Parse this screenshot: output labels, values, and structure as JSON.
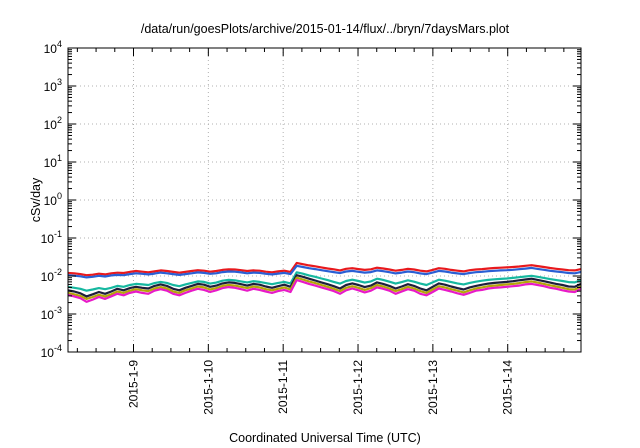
{
  "chart_data": {
    "type": "line",
    "title": "/data/run/goesPlots/archive/2015-01-14/flux/../bryn/7daysMars.plot",
    "xlabel": "Coordinated Universal Time (UTC)",
    "ylabel": "cSv/day",
    "yscale": "log",
    "ylim": [
      0.0001,
      10000
    ],
    "y_ticks": [
      {
        "value": 0.0001,
        "base": "10",
        "exp": "-4"
      },
      {
        "value": 0.001,
        "base": "10",
        "exp": "-3"
      },
      {
        "value": 0.01,
        "base": "10",
        "exp": "-2"
      },
      {
        "value": 0.1,
        "base": "10",
        "exp": "-1"
      },
      {
        "value": 1,
        "base": "10",
        "exp": "0"
      },
      {
        "value": 10,
        "base": "10",
        "exp": "1"
      },
      {
        "value": 100,
        "base": "10",
        "exp": "2"
      },
      {
        "value": 1000,
        "base": "10",
        "exp": "3"
      },
      {
        "value": 10000,
        "base": "10",
        "exp": "4"
      }
    ],
    "x_start": "2015-01-08T03:00",
    "x_end": "2015-01-14T23:30",
    "x_ticks": [
      "2015-1-9",
      "2015-1-10",
      "2015-1-11",
      "2015-1-12",
      "2015-1-13",
      "2015-1-14"
    ],
    "grid": true,
    "series": [
      {
        "color": "#e8191d",
        "values": [
          0.012,
          0.0118,
          0.0112,
          0.0105,
          0.0108,
          0.0115,
          0.011,
          0.0118,
          0.0122,
          0.012,
          0.0128,
          0.0135,
          0.013,
          0.0125,
          0.0132,
          0.014,
          0.0135,
          0.0128,
          0.0122,
          0.0128,
          0.0135,
          0.0142,
          0.0138,
          0.013,
          0.0135,
          0.0145,
          0.015,
          0.0148,
          0.0142,
          0.0135,
          0.014,
          0.0138,
          0.013,
          0.0125,
          0.0132,
          0.0138,
          0.0128,
          0.022,
          0.0205,
          0.019,
          0.018,
          0.0168,
          0.0158,
          0.015,
          0.014,
          0.0155,
          0.016,
          0.0152,
          0.0145,
          0.015,
          0.0165,
          0.0158,
          0.0148,
          0.0138,
          0.0145,
          0.0155,
          0.0148,
          0.0138,
          0.0132,
          0.0145,
          0.016,
          0.0155,
          0.0145,
          0.0138,
          0.0132,
          0.0142,
          0.0148,
          0.0152,
          0.0158,
          0.0162,
          0.0165,
          0.0168,
          0.0172,
          0.0178,
          0.0185,
          0.0192,
          0.0182,
          0.0172,
          0.0162,
          0.0155,
          0.0148,
          0.0142,
          0.014,
          0.0152
        ]
      },
      {
        "color": "#2a5fd4",
        "values": [
          0.0105,
          0.0102,
          0.0098,
          0.0092,
          0.0095,
          0.0101,
          0.0097,
          0.0104,
          0.0107,
          0.0105,
          0.0112,
          0.0118,
          0.0114,
          0.011,
          0.0116,
          0.0123,
          0.0118,
          0.0112,
          0.0107,
          0.0112,
          0.0118,
          0.0124,
          0.0121,
          0.0114,
          0.0118,
          0.0127,
          0.0131,
          0.013,
          0.0124,
          0.0118,
          0.0123,
          0.0121,
          0.0114,
          0.011,
          0.0116,
          0.0121,
          0.0112,
          0.0185,
          0.0172,
          0.016,
          0.0152,
          0.0142,
          0.0134,
          0.0127,
          0.0119,
          0.0131,
          0.0136,
          0.0129,
          0.0123,
          0.0127,
          0.014,
          0.0134,
          0.0126,
          0.0117,
          0.0123,
          0.0131,
          0.0126,
          0.0117,
          0.0112,
          0.0123,
          0.0136,
          0.0131,
          0.0123,
          0.0117,
          0.0112,
          0.012,
          0.0126,
          0.0129,
          0.0134,
          0.0137,
          0.014,
          0.0142,
          0.0146,
          0.0151,
          0.0157,
          0.0163,
          0.0154,
          0.0146,
          0.0137,
          0.0131,
          0.0126,
          0.012,
          0.0118,
          0.0128
        ]
      },
      {
        "color": "#16b8a0",
        "values": [
          0.0052,
          0.0049,
          0.0046,
          0.0041,
          0.0044,
          0.0048,
          0.0045,
          0.0049,
          0.0055,
          0.0052,
          0.0058,
          0.0062,
          0.006,
          0.0058,
          0.0065,
          0.007,
          0.0066,
          0.0058,
          0.0054,
          0.006,
          0.0066,
          0.0072,
          0.007,
          0.0063,
          0.0067,
          0.0075,
          0.0079,
          0.0077,
          0.0072,
          0.0068,
          0.0073,
          0.007,
          0.0065,
          0.0061,
          0.0066,
          0.007,
          0.0064,
          0.0125,
          0.0115,
          0.0104,
          0.0095,
          0.0086,
          0.0078,
          0.007,
          0.0063,
          0.0074,
          0.008,
          0.0074,
          0.0067,
          0.0072,
          0.0085,
          0.0079,
          0.0071,
          0.0063,
          0.0069,
          0.0077,
          0.0071,
          0.0063,
          0.0058,
          0.0068,
          0.008,
          0.0075,
          0.0069,
          0.0064,
          0.006,
          0.0066,
          0.0071,
          0.0075,
          0.0079,
          0.0082,
          0.0084,
          0.0086,
          0.0089,
          0.0093,
          0.0097,
          0.0101,
          0.0095,
          0.0089,
          0.0083,
          0.0078,
          0.0074,
          0.0069,
          0.0068,
          0.0078
        ]
      },
      {
        "color": "#1e1e3c",
        "values": [
          0.0042,
          0.0039,
          0.0035,
          0.0029,
          0.0033,
          0.0038,
          0.0034,
          0.0039,
          0.0046,
          0.0042,
          0.0048,
          0.0052,
          0.0049,
          0.0047,
          0.0055,
          0.006,
          0.0055,
          0.0046,
          0.0042,
          0.0049,
          0.0055,
          0.0062,
          0.0059,
          0.0052,
          0.0056,
          0.0064,
          0.0068,
          0.0066,
          0.0061,
          0.0056,
          0.0062,
          0.0059,
          0.0053,
          0.0049,
          0.0054,
          0.0059,
          0.0052,
          0.0105,
          0.0095,
          0.0085,
          0.0076,
          0.0068,
          0.0061,
          0.0054,
          0.0047,
          0.0058,
          0.0064,
          0.0058,
          0.0051,
          0.0056,
          0.0068,
          0.0062,
          0.0055,
          0.0047,
          0.0053,
          0.0061,
          0.0055,
          0.0047,
          0.0042,
          0.0052,
          0.0064,
          0.0059,
          0.0053,
          0.0048,
          0.0044,
          0.005,
          0.0055,
          0.0059,
          0.0063,
          0.0066,
          0.0068,
          0.007,
          0.0073,
          0.0077,
          0.0081,
          0.0085,
          0.0079,
          0.0073,
          0.0067,
          0.0062,
          0.0058,
          0.0053,
          0.0052,
          0.0062
        ]
      },
      {
        "color": "#b4a50a",
        "values": [
          0.0036,
          0.0033,
          0.003,
          0.0025,
          0.0028,
          0.0032,
          0.0029,
          0.0033,
          0.0039,
          0.0036,
          0.0041,
          0.0045,
          0.0042,
          0.004,
          0.0047,
          0.0051,
          0.0047,
          0.0039,
          0.0036,
          0.0042,
          0.0047,
          0.0053,
          0.005,
          0.0044,
          0.0048,
          0.0055,
          0.0058,
          0.0056,
          0.0052,
          0.0048,
          0.0053,
          0.005,
          0.0045,
          0.0042,
          0.0046,
          0.005,
          0.0044,
          0.009,
          0.0081,
          0.0072,
          0.0065,
          0.0058,
          0.0052,
          0.0046,
          0.004,
          0.0049,
          0.0054,
          0.0049,
          0.0043,
          0.0048,
          0.0058,
          0.0053,
          0.0047,
          0.004,
          0.0045,
          0.0052,
          0.0047,
          0.004,
          0.0036,
          0.0044,
          0.0054,
          0.005,
          0.0045,
          0.0041,
          0.0037,
          0.0042,
          0.0047,
          0.005,
          0.0054,
          0.0056,
          0.0058,
          0.006,
          0.0062,
          0.0065,
          0.0069,
          0.0072,
          0.0067,
          0.0062,
          0.0057,
          0.0053,
          0.0049,
          0.0045,
          0.0044,
          0.0053
        ]
      },
      {
        "color": "#e81ac8",
        "values": [
          0.0032,
          0.0029,
          0.0026,
          0.0021,
          0.0024,
          0.0028,
          0.0025,
          0.0029,
          0.0034,
          0.0031,
          0.0036,
          0.0039,
          0.0036,
          0.0034,
          0.0041,
          0.0045,
          0.0041,
          0.0034,
          0.0031,
          0.0036,
          0.0041,
          0.0046,
          0.0043,
          0.0038,
          0.0042,
          0.0048,
          0.0051,
          0.0049,
          0.0045,
          0.0041,
          0.0046,
          0.0043,
          0.0039,
          0.0036,
          0.004,
          0.0043,
          0.0038,
          0.0078,
          0.007,
          0.0062,
          0.0056,
          0.005,
          0.0045,
          0.004,
          0.0034,
          0.0042,
          0.0047,
          0.0042,
          0.0037,
          0.0041,
          0.005,
          0.0046,
          0.0041,
          0.0034,
          0.0039,
          0.0045,
          0.0041,
          0.0034,
          0.0031,
          0.0038,
          0.0047,
          0.0043,
          0.0039,
          0.0035,
          0.0032,
          0.0036,
          0.0041,
          0.0043,
          0.0047,
          0.0049,
          0.005,
          0.0052,
          0.0054,
          0.0056,
          0.006,
          0.0062,
          0.0058,
          0.0054,
          0.0049,
          0.0046,
          0.0042,
          0.0039,
          0.0038,
          0.0046
        ]
      }
    ]
  }
}
